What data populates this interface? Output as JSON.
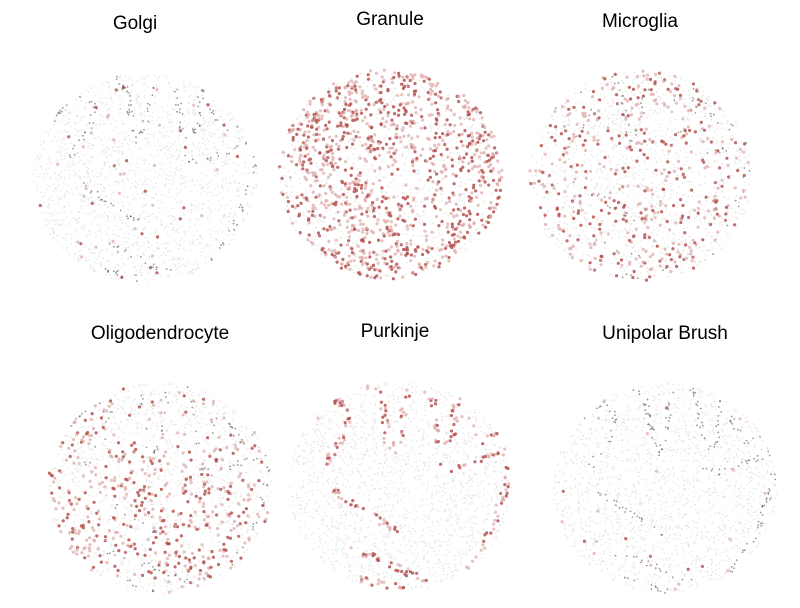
{
  "panels": [
    {
      "id": "golgi",
      "title": "Golgi",
      "pattern": "scattered-sparse",
      "highlight_density": 0.1,
      "layer_contrast": 0.8
    },
    {
      "id": "granule",
      "title": "Granule",
      "pattern": "granular-layer",
      "highlight_density": 0.95,
      "layer_contrast": 0.0
    },
    {
      "id": "microglia",
      "title": "Microglia",
      "pattern": "uniform-faint",
      "highlight_density": 0.45,
      "layer_contrast": 0.5
    },
    {
      "id": "oligodendrocyte",
      "title": "Oligodendrocyte",
      "pattern": "white-matter",
      "highlight_density": 0.6,
      "layer_contrast": 0.6
    },
    {
      "id": "purkinje",
      "title": "Purkinje",
      "pattern": "purkinje-layer",
      "highlight_density": 0.9,
      "layer_contrast": 0.0
    },
    {
      "id": "unipolar-brush",
      "title": "Unipolar Brush",
      "pattern": "sparse-posterior",
      "highlight_density": 0.08,
      "layer_contrast": 0.8
    }
  ],
  "colors": {
    "highlight": "#b5524f",
    "highlight_light": "#dba7a5",
    "background_point": "#d4d4d4",
    "layer_point": "#444444"
  }
}
